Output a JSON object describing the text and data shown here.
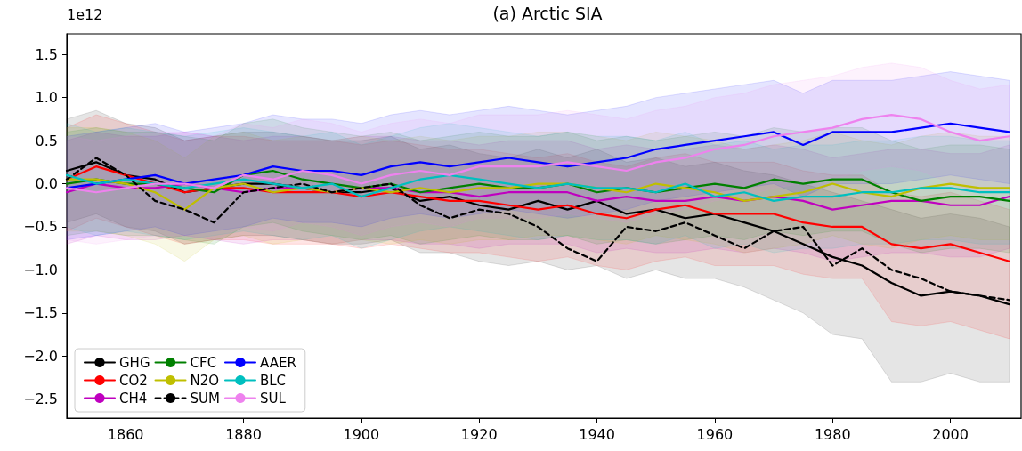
{
  "chart_data": {
    "type": "line",
    "title": "(a) Arctic SIA",
    "annotations": [
      "1e12"
    ],
    "x": [
      1850,
      1855,
      1860,
      1865,
      1870,
      1875,
      1880,
      1885,
      1890,
      1895,
      1900,
      1905,
      1910,
      1915,
      1920,
      1925,
      1930,
      1935,
      1940,
      1945,
      1950,
      1955,
      1960,
      1965,
      1970,
      1975,
      1980,
      1985,
      1990,
      1995,
      2000,
      2005,
      2010
    ],
    "xlim": [
      1850,
      2012
    ],
    "xticks": [
      1860,
      1880,
      1900,
      1920,
      1940,
      1960,
      1980,
      2000
    ],
    "ylim": [
      -2.72,
      1.74
    ],
    "yticks": [
      {
        "value": -2.5,
        "label": "−2.5"
      },
      {
        "value": -2.0,
        "label": "−2.0"
      },
      {
        "value": -1.5,
        "label": "−1.5"
      },
      {
        "value": -1.0,
        "label": "−1.0"
      },
      {
        "value": -0.5,
        "label": "−0.5"
      },
      {
        "value": 0,
        "label": "0.0"
      },
      {
        "value": 0.5,
        "label": "0.5"
      },
      {
        "value": 1.0,
        "label": "1.0"
      },
      {
        "value": 1.5,
        "label": "1.5"
      }
    ],
    "grid": false,
    "legend": "bottom left",
    "marker": "none",
    "series": [
      {
        "name": "GHG",
        "color": "#000000",
        "line_style": "solid",
        "values": [
          0.15,
          0.25,
          0.1,
          0.05,
          -0.1,
          -0.05,
          0,
          0,
          -0.05,
          -0.1,
          -0.1,
          -0.05,
          -0.2,
          -0.15,
          -0.25,
          -0.3,
          -0.2,
          -0.3,
          -0.2,
          -0.35,
          -0.3,
          -0.4,
          -0.35,
          -0.45,
          -0.55,
          -0.7,
          -0.85,
          -0.95,
          -1.15,
          -1.3,
          -1.25,
          -1.3,
          -1.4
        ],
        "lower": [
          -0.45,
          -0.35,
          -0.5,
          -0.55,
          -0.7,
          -0.65,
          -0.6,
          -0.6,
          -0.65,
          -0.7,
          -0.7,
          -0.65,
          -0.8,
          -0.8,
          -0.9,
          -0.95,
          -0.9,
          -1.0,
          -0.95,
          -1.1,
          -1.0,
          -1.1,
          -1.1,
          -1.2,
          -1.35,
          -1.5,
          -1.75,
          -1.8,
          -2.3,
          -2.3,
          -2.2,
          -2.3,
          -2.3
        ],
        "upper": [
          0.75,
          0.85,
          0.7,
          0.65,
          0.5,
          0.55,
          0.6,
          0.6,
          0.55,
          0.5,
          0.5,
          0.55,
          0.4,
          0.45,
          0.35,
          0.3,
          0.4,
          0.3,
          0.4,
          0.25,
          0.3,
          0.2,
          0.25,
          0.15,
          0.1,
          0.0,
          -0.1,
          -0.2,
          -0.3,
          -0.4,
          -0.35,
          -0.4,
          -0.5
        ]
      },
      {
        "name": "CO2",
        "color": "#ff0000",
        "line_style": "solid",
        "values": [
          0.05,
          0.2,
          0.1,
          0.0,
          -0.1,
          -0.05,
          -0.05,
          -0.1,
          -0.1,
          -0.1,
          -0.15,
          -0.1,
          -0.15,
          -0.2,
          -0.2,
          -0.25,
          -0.3,
          -0.25,
          -0.35,
          -0.4,
          -0.3,
          -0.25,
          -0.35,
          -0.35,
          -0.35,
          -0.45,
          -0.5,
          -0.5,
          -0.7,
          -0.75,
          -0.7,
          -0.8,
          -0.9
        ],
        "lower": [
          -0.55,
          -0.4,
          -0.5,
          -0.6,
          -0.7,
          -0.65,
          -0.65,
          -0.7,
          -0.7,
          -0.7,
          -0.75,
          -0.7,
          -0.75,
          -0.8,
          -0.8,
          -0.85,
          -0.9,
          -0.85,
          -0.95,
          -1.0,
          -0.9,
          -0.85,
          -0.95,
          -0.95,
          -0.95,
          -1.05,
          -1.1,
          -1.1,
          -1.6,
          -1.65,
          -1.6,
          -1.7,
          -1.8
        ],
        "upper": [
          0.65,
          0.8,
          0.7,
          0.6,
          0.5,
          0.55,
          0.55,
          0.5,
          0.5,
          0.5,
          0.45,
          0.5,
          0.45,
          0.4,
          0.4,
          0.35,
          0.3,
          0.35,
          0.25,
          0.2,
          0.3,
          0.35,
          0.25,
          0.25,
          0.25,
          0.15,
          0.1,
          0.1,
          -0.1,
          -0.15,
          -0.1,
          -0.2,
          -0.3
        ]
      },
      {
        "name": "CH4",
        "color": "#bf00bf",
        "line_style": "solid",
        "values": [
          -0.1,
          0.0,
          -0.05,
          -0.05,
          0.0,
          -0.05,
          -0.1,
          -0.05,
          -0.05,
          -0.1,
          -0.05,
          -0.05,
          -0.1,
          -0.1,
          -0.15,
          -0.1,
          -0.1,
          -0.1,
          -0.2,
          -0.15,
          -0.2,
          -0.2,
          -0.15,
          -0.2,
          -0.15,
          -0.2,
          -0.3,
          -0.25,
          -0.2,
          -0.2,
          -0.25,
          -0.25,
          -0.15
        ],
        "lower": [
          -0.7,
          -0.6,
          -0.65,
          -0.65,
          -0.6,
          -0.65,
          -0.7,
          -0.65,
          -0.65,
          -0.7,
          -0.65,
          -0.65,
          -0.7,
          -0.7,
          -0.75,
          -0.7,
          -0.7,
          -0.7,
          -0.8,
          -0.75,
          -0.8,
          -0.8,
          -0.75,
          -0.8,
          -0.75,
          -0.8,
          -0.9,
          -0.85,
          -0.8,
          -0.8,
          -0.85,
          -0.85,
          -0.75
        ],
        "upper": [
          0.5,
          0.6,
          0.55,
          0.55,
          0.6,
          0.55,
          0.5,
          0.55,
          0.55,
          0.5,
          0.55,
          0.55,
          0.5,
          0.5,
          0.45,
          0.5,
          0.5,
          0.5,
          0.4,
          0.45,
          0.4,
          0.4,
          0.45,
          0.4,
          0.45,
          0.4,
          0.3,
          0.35,
          0.4,
          0.4,
          0.35,
          0.35,
          0.45
        ]
      },
      {
        "name": "CFC",
        "color": "#008000",
        "line_style": "solid",
        "values": [
          0.0,
          0.05,
          0.0,
          0.0,
          -0.05,
          -0.1,
          0.1,
          0.15,
          0.05,
          0.0,
          -0.05,
          0.0,
          -0.1,
          -0.05,
          0.0,
          -0.05,
          -0.05,
          0.0,
          -0.1,
          -0.05,
          -0.1,
          -0.05,
          0.0,
          -0.05,
          0.05,
          0.0,
          0.05,
          0.05,
          -0.1,
          -0.2,
          -0.15,
          -0.15,
          -0.2
        ],
        "lower": [
          -0.6,
          -0.55,
          -0.6,
          -0.6,
          -0.65,
          -0.7,
          -0.5,
          -0.45,
          -0.55,
          -0.6,
          -0.65,
          -0.6,
          -0.7,
          -0.65,
          -0.6,
          -0.65,
          -0.65,
          -0.6,
          -0.7,
          -0.65,
          -0.7,
          -0.65,
          -0.6,
          -0.65,
          -0.55,
          -0.6,
          -0.55,
          -0.55,
          -0.7,
          -0.8,
          -0.75,
          -0.75,
          -0.8
        ],
        "upper": [
          0.6,
          0.65,
          0.6,
          0.6,
          0.55,
          0.5,
          0.7,
          0.75,
          0.65,
          0.6,
          0.55,
          0.6,
          0.5,
          0.55,
          0.6,
          0.55,
          0.55,
          0.6,
          0.5,
          0.55,
          0.5,
          0.55,
          0.6,
          0.55,
          0.65,
          0.6,
          0.65,
          0.65,
          0.5,
          0.4,
          0.45,
          0.45,
          0.4
        ]
      },
      {
        "name": "N2O",
        "color": "#bfbf00",
        "line_style": "solid",
        "values": [
          0.05,
          0.05,
          0.0,
          -0.1,
          -0.3,
          -0.05,
          0.0,
          -0.1,
          -0.05,
          -0.1,
          -0.05,
          -0.1,
          -0.05,
          -0.1,
          -0.05,
          -0.05,
          0.0,
          0.0,
          -0.05,
          -0.1,
          0.0,
          -0.05,
          -0.1,
          -0.2,
          -0.15,
          -0.1,
          0.0,
          -0.1,
          -0.15,
          -0.05,
          0.0,
          -0.05,
          -0.05
        ],
        "lower": [
          -0.55,
          -0.55,
          -0.6,
          -0.7,
          -0.9,
          -0.65,
          -0.6,
          -0.7,
          -0.65,
          -0.7,
          -0.65,
          -0.7,
          -0.65,
          -0.7,
          -0.65,
          -0.65,
          -0.6,
          -0.6,
          -0.65,
          -0.7,
          -0.6,
          -0.65,
          -0.7,
          -0.8,
          -0.75,
          -0.7,
          -0.6,
          -0.7,
          -0.75,
          -0.65,
          -0.6,
          -0.65,
          -0.65
        ],
        "upper": [
          0.65,
          0.65,
          0.6,
          0.5,
          0.3,
          0.55,
          0.6,
          0.5,
          0.55,
          0.5,
          0.55,
          0.5,
          0.55,
          0.5,
          0.55,
          0.55,
          0.6,
          0.6,
          0.55,
          0.5,
          0.6,
          0.55,
          0.5,
          0.4,
          0.45,
          0.5,
          0.6,
          0.5,
          0.45,
          0.55,
          0.6,
          0.55,
          0.55
        ]
      },
      {
        "name": "SUM",
        "color": "#000000",
        "line_style": "dashed",
        "values": [
          0.05,
          0.3,
          0.1,
          -0.2,
          -0.3,
          -0.45,
          -0.1,
          -0.05,
          0.0,
          -0.1,
          -0.05,
          0.0,
          -0.25,
          -0.4,
          -0.3,
          -0.35,
          -0.5,
          -0.75,
          -0.9,
          -0.5,
          -0.55,
          -0.45,
          -0.6,
          -0.75,
          -0.55,
          -0.5,
          -0.95,
          -0.75,
          -1.0,
          -1.1,
          -1.25,
          -1.3,
          -1.35
        ]
      },
      {
        "name": "AAER",
        "color": "#0000ff",
        "line_style": "solid",
        "values": [
          -0.05,
          0.0,
          0.05,
          0.1,
          0.0,
          0.05,
          0.1,
          0.2,
          0.15,
          0.15,
          0.1,
          0.2,
          0.25,
          0.2,
          0.25,
          0.3,
          0.25,
          0.2,
          0.25,
          0.3,
          0.4,
          0.45,
          0.5,
          0.55,
          0.6,
          0.45,
          0.6,
          0.6,
          0.6,
          0.65,
          0.7,
          0.65,
          0.6
        ],
        "lower": [
          -0.65,
          -0.6,
          -0.55,
          -0.5,
          -0.6,
          -0.55,
          -0.5,
          -0.4,
          -0.45,
          -0.45,
          -0.5,
          -0.4,
          -0.35,
          -0.4,
          -0.35,
          -0.3,
          -0.35,
          -0.4,
          -0.35,
          -0.3,
          -0.2,
          -0.15,
          -0.1,
          -0.05,
          0.0,
          -0.15,
          0.0,
          0.0,
          0.0,
          0.05,
          0.1,
          0.05,
          0.0
        ],
        "upper": [
          0.55,
          0.6,
          0.65,
          0.7,
          0.6,
          0.65,
          0.7,
          0.8,
          0.75,
          0.75,
          0.7,
          0.8,
          0.85,
          0.8,
          0.85,
          0.9,
          0.85,
          0.8,
          0.85,
          0.9,
          1.0,
          1.05,
          1.1,
          1.15,
          1.2,
          1.05,
          1.2,
          1.2,
          1.2,
          1.25,
          1.3,
          1.25,
          1.2
        ]
      },
      {
        "name": "BLC",
        "color": "#00bfbf",
        "line_style": "solid",
        "values": [
          0.1,
          0.0,
          0.05,
          0.0,
          -0.05,
          0.0,
          0.05,
          0.0,
          -0.05,
          0.0,
          -0.15,
          -0.05,
          0.05,
          0.1,
          0.05,
          0.0,
          -0.05,
          0.0,
          -0.05,
          -0.05,
          -0.1,
          0.0,
          -0.15,
          -0.1,
          -0.2,
          -0.15,
          -0.15,
          -0.1,
          -0.1,
          -0.05,
          -0.05,
          -0.1,
          -0.1
        ],
        "lower": [
          -0.5,
          -0.6,
          -0.55,
          -0.6,
          -0.65,
          -0.6,
          -0.55,
          -0.6,
          -0.65,
          -0.6,
          -0.75,
          -0.65,
          -0.55,
          -0.5,
          -0.55,
          -0.6,
          -0.65,
          -0.6,
          -0.65,
          -0.65,
          -0.7,
          -0.6,
          -0.75,
          -0.7,
          -0.8,
          -0.75,
          -0.75,
          -0.7,
          -0.7,
          -0.65,
          -0.65,
          -0.7,
          -0.7
        ],
        "upper": [
          0.7,
          0.6,
          0.65,
          0.6,
          0.55,
          0.6,
          0.65,
          0.6,
          0.55,
          0.6,
          0.45,
          0.55,
          0.65,
          0.7,
          0.65,
          0.6,
          0.55,
          0.6,
          0.55,
          0.55,
          0.5,
          0.6,
          0.45,
          0.5,
          0.4,
          0.45,
          0.45,
          0.5,
          0.5,
          0.55,
          0.55,
          0.5,
          0.5
        ]
      },
      {
        "name": "SUL",
        "color": "#ee82ee",
        "line_style": "solid",
        "values": [
          -0.05,
          -0.1,
          -0.05,
          0.0,
          0.0,
          -0.05,
          0.1,
          0.05,
          0.15,
          0.1,
          0.0,
          0.1,
          0.15,
          0.1,
          0.2,
          0.2,
          0.2,
          0.25,
          0.2,
          0.15,
          0.25,
          0.3,
          0.4,
          0.45,
          0.55,
          0.6,
          0.65,
          0.75,
          0.8,
          0.75,
          0.6,
          0.5,
          0.55
        ],
        "lower": [
          -0.65,
          -0.7,
          -0.65,
          -0.6,
          -0.6,
          -0.65,
          -0.5,
          -0.55,
          -0.45,
          -0.5,
          -0.6,
          -0.5,
          -0.45,
          -0.5,
          -0.4,
          -0.4,
          -0.4,
          -0.35,
          -0.4,
          -0.45,
          -0.35,
          -0.3,
          -0.2,
          -0.15,
          -0.05,
          0.0,
          0.05,
          0.15,
          0.2,
          0.15,
          0.0,
          -0.1,
          -0.05
        ],
        "upper": [
          0.55,
          0.5,
          0.55,
          0.6,
          0.6,
          0.55,
          0.7,
          0.65,
          0.75,
          0.7,
          0.6,
          0.7,
          0.75,
          0.7,
          0.8,
          0.8,
          0.8,
          0.85,
          0.8,
          0.75,
          0.85,
          0.9,
          1.0,
          1.05,
          1.15,
          1.2,
          1.25,
          1.35,
          1.4,
          1.35,
          1.2,
          1.1,
          1.15
        ]
      }
    ]
  }
}
